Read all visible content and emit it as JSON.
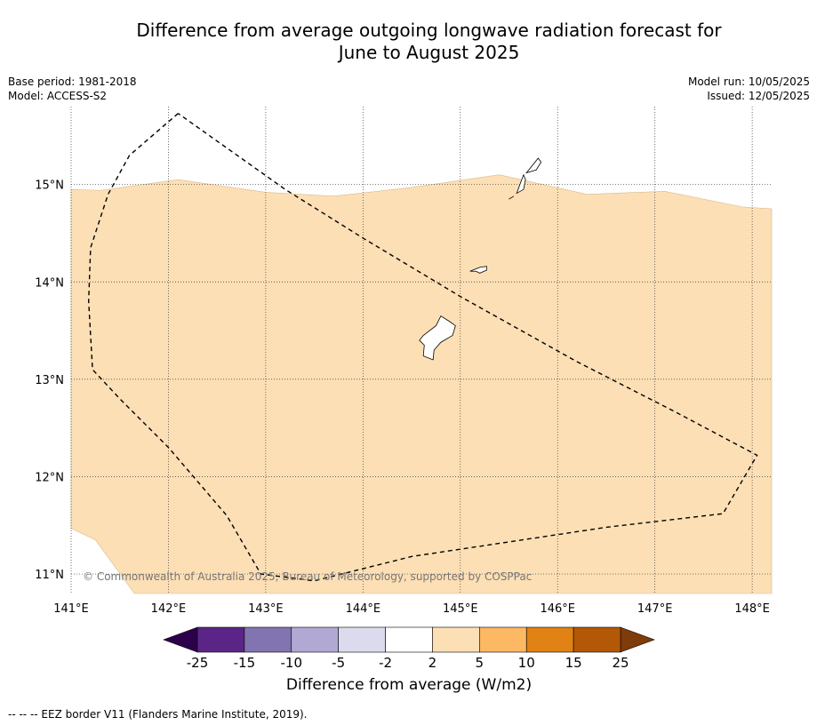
{
  "title_line1": "Difference from average outgoing longwave radiation forecast for",
  "title_line2": "June to August 2025",
  "meta_left": {
    "base_period": "Base period: 1981-2018",
    "model": "Model: ACCESS-S2"
  },
  "meta_right": {
    "model_run": "Model run: 10/05/2025",
    "issued": "Issued: 12/05/2025"
  },
  "map": {
    "lon_range": [
      141.0,
      148.2
    ],
    "lat_range": [
      10.8,
      15.8
    ],
    "lon_ticks": [
      141,
      142,
      143,
      144,
      145,
      146,
      147,
      148
    ],
    "lon_labels": [
      "141°E",
      "142°E",
      "143°E",
      "144°E",
      "145°E",
      "146°E",
      "147°E",
      "148°E"
    ],
    "lat_ticks": [
      11,
      12,
      13,
      14,
      15
    ],
    "lat_labels": [
      "11°N",
      "12°N",
      "13°N",
      "14°N",
      "15°N"
    ],
    "fill_color": "#fddfb5",
    "anomaly_band": "2 to 5",
    "copyright": "© Commonwealth of Australia 2025, Bureau of Meteorology, supported by COSPPac",
    "eez_border": [
      [
        142.1,
        15.73
      ],
      [
        141.6,
        15.3
      ],
      [
        141.38,
        14.9
      ],
      [
        141.2,
        14.35
      ],
      [
        141.18,
        13.8
      ],
      [
        141.22,
        13.1
      ],
      [
        141.5,
        12.8
      ],
      [
        142.0,
        12.3
      ],
      [
        142.6,
        11.6
      ],
      [
        142.95,
        11.0
      ],
      [
        143.5,
        10.93
      ],
      [
        144.5,
        11.18
      ],
      [
        145.5,
        11.33
      ],
      [
        146.5,
        11.48
      ],
      [
        147.7,
        11.62
      ],
      [
        148.05,
        12.22
      ],
      [
        147.2,
        12.67
      ],
      [
        146.2,
        13.18
      ],
      [
        145.0,
        13.85
      ],
      [
        144.0,
        14.45
      ],
      [
        143.2,
        14.95
      ],
      [
        142.1,
        15.73
      ]
    ],
    "islands": [
      [
        [
          144.62,
          13.45
        ],
        [
          144.75,
          13.55
        ],
        [
          144.8,
          13.65
        ],
        [
          144.88,
          13.6
        ],
        [
          144.95,
          13.55
        ],
        [
          144.92,
          13.45
        ],
        [
          144.8,
          13.38
        ],
        [
          144.73,
          13.3
        ],
        [
          144.72,
          13.2
        ],
        [
          144.62,
          13.24
        ],
        [
          144.63,
          13.35
        ],
        [
          144.58,
          13.4
        ]
      ],
      [
        [
          145.1,
          14.11
        ],
        [
          145.2,
          14.15
        ],
        [
          145.27,
          14.16
        ],
        [
          145.27,
          14.12
        ],
        [
          145.2,
          14.09
        ],
        [
          145.16,
          14.11
        ]
      ],
      [
        [
          145.58,
          14.91
        ],
        [
          145.62,
          15.02
        ],
        [
          145.65,
          15.1
        ],
        [
          145.67,
          15.05
        ],
        [
          145.65,
          14.95
        ]
      ],
      [
        [
          145.5,
          14.85
        ],
        [
          145.55,
          14.88
        ]
      ],
      [
        [
          145.68,
          15.12
        ],
        [
          145.8,
          15.27
        ],
        [
          145.83,
          15.23
        ],
        [
          145.78,
          15.15
        ]
      ]
    ],
    "fill_top_edge": [
      [
        141.0,
        14.95
      ],
      [
        141.3,
        14.94
      ],
      [
        142.1,
        15.05
      ],
      [
        143.0,
        14.92
      ],
      [
        143.7,
        14.88
      ],
      [
        144.5,
        14.97
      ],
      [
        145.4,
        15.1
      ],
      [
        146.3,
        14.9
      ],
      [
        147.1,
        14.93
      ],
      [
        147.9,
        14.77
      ],
      [
        148.2,
        14.75
      ]
    ],
    "fill_left_bottom": [
      [
        141.0,
        11.47
      ],
      [
        141.25,
        11.35
      ],
      [
        141.65,
        10.8
      ]
    ]
  },
  "colorbar": {
    "label": "Difference from average (W/m2)",
    "ticks": [
      "-25",
      "-15",
      "-10",
      "-5",
      "-2",
      "2",
      "5",
      "10",
      "15",
      "25"
    ],
    "colors": [
      "#5b2587",
      "#8273b1",
      "#b1a9d4",
      "#dbdbed",
      "#ffffff",
      "#fddfb5",
      "#fdb863",
      "#e08214",
      "#b35806"
    ],
    "low_extend_color": "#2d004b",
    "high_extend_color": "#7f3b08"
  },
  "footer": "--  --  -- EEZ border V11 (Flanders Marine Institute, 2019)."
}
